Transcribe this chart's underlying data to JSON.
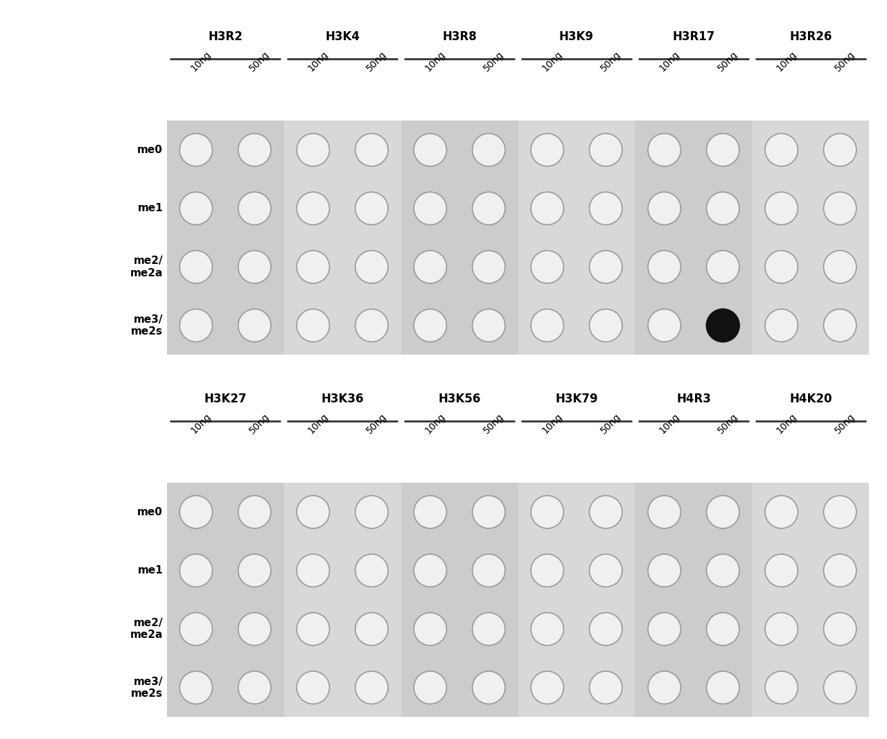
{
  "panel1": {
    "col_groups": [
      "H3R2",
      "H3K4",
      "H3R8",
      "H3K9",
      "H3R17",
      "H3R26"
    ],
    "col_subheaders": [
      "10ng",
      "50ng"
    ],
    "row_labels": [
      "me0",
      "me1",
      "me2/\nme2a",
      "me3/\nme2s"
    ],
    "filled_dots": [
      [
        4,
        1,
        3
      ]
    ],
    "bg_color_dark": "#cccccc",
    "bg_color_light": "#d8d8d8",
    "dot_edge_color": "#999999",
    "dot_face_color": "#f0f0f0",
    "filled_dot_color": "#111111",
    "line_color": "#333333"
  },
  "panel2": {
    "col_groups": [
      "H3K27",
      "H3K36",
      "H3K56",
      "H3K79",
      "H4R3",
      "H4K20"
    ],
    "col_subheaders": [
      "10ng",
      "50ng"
    ],
    "row_labels": [
      "me0",
      "me1",
      "me2/\nme2a",
      "me3/\nme2s"
    ],
    "filled_dots": [],
    "bg_color_dark": "#cccccc",
    "bg_color_light": "#d8d8d8",
    "dot_edge_color": "#999999",
    "dot_face_color": "#f0f0f0",
    "filled_dot_color": "#111111",
    "line_color": "#333333"
  },
  "figure_bg": "#ffffff",
  "col_group_fontsize": 12,
  "subheader_fontsize": 10,
  "row_label_fontsize": 11
}
